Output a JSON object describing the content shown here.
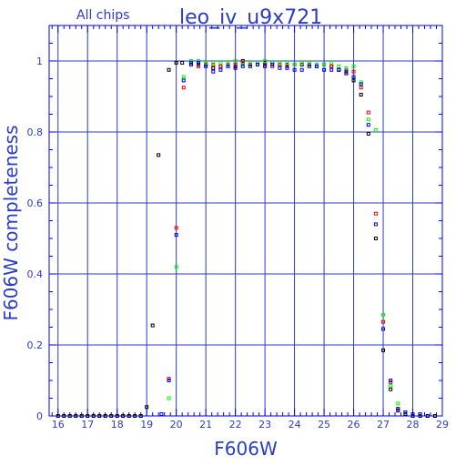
{
  "chart_data": {
    "type": "scatter",
    "title": "leo_iv_u9x721",
    "subtitle": "All chips",
    "xlabel": "F606W",
    "ylabel": "F606W completeness",
    "xlim": [
      15.7,
      29
    ],
    "ylim": [
      0,
      1.1
    ],
    "grid": true,
    "x_ticks": [
      16,
      17,
      18,
      19,
      20,
      21,
      22,
      23,
      24,
      25,
      26,
      27,
      28,
      29
    ],
    "y_ticks": [
      0,
      0.2,
      0.4,
      0.6,
      0.8,
      1
    ],
    "colors": {
      "axis": "#0000ff",
      "grid": "#2b3cc4",
      "text": "#2b3cc4",
      "series_black": "#000000",
      "series_red": "#ff0000",
      "series_green": "#00ff00",
      "series_blue": "#0000ff"
    },
    "series": [
      {
        "color": "#000000",
        "points": [
          [
            16.0,
            0
          ],
          [
            16.2,
            0
          ],
          [
            16.4,
            0
          ],
          [
            16.6,
            0
          ],
          [
            16.8,
            0
          ],
          [
            17.0,
            0
          ],
          [
            17.2,
            0
          ],
          [
            17.4,
            0
          ],
          [
            17.6,
            0
          ],
          [
            17.8,
            0
          ],
          [
            18.0,
            0
          ],
          [
            18.2,
            0
          ],
          [
            18.4,
            0
          ],
          [
            18.6,
            0
          ],
          [
            18.8,
            0
          ],
          [
            19.0,
            0.025
          ],
          [
            19.2,
            0.255
          ],
          [
            19.4,
            0.735
          ],
          [
            19.75,
            0.975
          ],
          [
            20.0,
            0.995
          ],
          [
            20.2,
            0.995
          ],
          [
            20.5,
            0.99
          ],
          [
            20.75,
            0.99
          ],
          [
            21.0,
            0.99
          ],
          [
            21.25,
            0.98
          ],
          [
            21.5,
            0.985
          ],
          [
            21.75,
            0.99
          ],
          [
            22.0,
            0.985
          ],
          [
            22.25,
            1.0
          ],
          [
            22.5,
            0.99
          ],
          [
            22.75,
            0.99
          ],
          [
            23.0,
            0.995
          ],
          [
            23.25,
            0.995
          ],
          [
            23.5,
            0.99
          ],
          [
            23.75,
            0.99
          ],
          [
            24.0,
            0.99
          ],
          [
            24.25,
            0.99
          ],
          [
            24.5,
            0.99
          ],
          [
            24.75,
            0.985
          ],
          [
            25.0,
            0.99
          ],
          [
            25.25,
            0.985
          ],
          [
            25.5,
            0.975
          ],
          [
            25.75,
            0.965
          ],
          [
            26.0,
            0.945
          ],
          [
            26.25,
            0.905
          ],
          [
            26.5,
            0.795
          ],
          [
            26.75,
            0.5
          ],
          [
            27.0,
            0.185
          ],
          [
            27.25,
            0.075
          ],
          [
            27.5,
            0.015
          ],
          [
            27.75,
            0.005
          ],
          [
            28.0,
            0
          ],
          [
            28.25,
            0
          ],
          [
            28.5,
            0
          ],
          [
            28.75,
            0
          ]
        ]
      },
      {
        "color": "#ff0000",
        "points": [
          [
            19.75,
            0.105
          ],
          [
            20.0,
            0.53
          ],
          [
            20.25,
            0.925
          ],
          [
            20.5,
            0.995
          ],
          [
            20.75,
            0.985
          ],
          [
            21.0,
            0.99
          ],
          [
            21.25,
            0.99
          ],
          [
            21.5,
            0.985
          ],
          [
            21.75,
            0.99
          ],
          [
            22.0,
            0.99
          ],
          [
            22.25,
            0.995
          ],
          [
            22.5,
            0.99
          ],
          [
            22.75,
            0.995
          ],
          [
            23.0,
            0.99
          ],
          [
            23.25,
            0.985
          ],
          [
            23.5,
            0.99
          ],
          [
            23.75,
            0.985
          ],
          [
            24.0,
            0.99
          ],
          [
            24.25,
            0.995
          ],
          [
            24.5,
            0.99
          ],
          [
            24.75,
            0.985
          ],
          [
            25.0,
            0.99
          ],
          [
            25.25,
            0.985
          ],
          [
            25.5,
            0.975
          ],
          [
            25.75,
            0.975
          ],
          [
            26.0,
            0.97
          ],
          [
            26.25,
            0.925
          ],
          [
            26.5,
            0.855
          ],
          [
            26.75,
            0.57
          ],
          [
            27.0,
            0.265
          ],
          [
            27.25,
            0.095
          ],
          [
            27.5,
            0.02
          ],
          [
            27.75,
            0.01
          ],
          [
            28.0,
            0.005
          ]
        ]
      },
      {
        "color": "#00ff00",
        "points": [
          [
            19.75,
            0.05
          ],
          [
            20.0,
            0.42
          ],
          [
            20.25,
            0.955
          ],
          [
            20.5,
            1.0
          ],
          [
            20.75,
            1.0
          ],
          [
            21.0,
            0.995
          ],
          [
            21.25,
            0.995
          ],
          [
            21.5,
            0.995
          ],
          [
            21.75,
            0.995
          ],
          [
            22.0,
            1.0
          ],
          [
            22.25,
            0.99
          ],
          [
            22.5,
            0.995
          ],
          [
            22.75,
            0.995
          ],
          [
            23.0,
            1.0
          ],
          [
            23.25,
            0.995
          ],
          [
            23.5,
            0.995
          ],
          [
            23.75,
            0.995
          ],
          [
            24.0,
            0.99
          ],
          [
            24.25,
            0.995
          ],
          [
            24.5,
            0.995
          ],
          [
            24.75,
            0.99
          ],
          [
            25.0,
            0.99
          ],
          [
            25.25,
            0.995
          ],
          [
            25.5,
            0.985
          ],
          [
            25.75,
            0.98
          ],
          [
            26.0,
            0.985
          ],
          [
            26.25,
            0.94
          ],
          [
            26.5,
            0.835
          ],
          [
            26.75,
            0.805
          ],
          [
            27.0,
            0.285
          ],
          [
            27.25,
            0.085
          ],
          [
            27.5,
            0.035
          ],
          [
            27.75,
            0.01
          ]
        ]
      },
      {
        "color": "#0000ff",
        "points": [
          [
            19.5,
            0.005
          ],
          [
            19.75,
            0.1
          ],
          [
            20.0,
            0.51
          ],
          [
            20.25,
            0.945
          ],
          [
            20.5,
            0.995
          ],
          [
            20.75,
            0.995
          ],
          [
            21.0,
            0.985
          ],
          [
            21.25,
            0.97
          ],
          [
            21.5,
            0.975
          ],
          [
            21.75,
            0.985
          ],
          [
            22.0,
            0.98
          ],
          [
            22.25,
            0.985
          ],
          [
            22.5,
            0.985
          ],
          [
            22.75,
            0.99
          ],
          [
            23.0,
            0.985
          ],
          [
            23.25,
            0.99
          ],
          [
            23.5,
            0.98
          ],
          [
            23.75,
            0.98
          ],
          [
            24.0,
            0.975
          ],
          [
            24.25,
            0.975
          ],
          [
            24.5,
            0.985
          ],
          [
            24.75,
            0.985
          ],
          [
            25.0,
            0.975
          ],
          [
            25.25,
            0.975
          ],
          [
            25.5,
            0.975
          ],
          [
            25.75,
            0.97
          ],
          [
            26.0,
            0.955
          ],
          [
            26.25,
            0.935
          ],
          [
            26.5,
            0.82
          ],
          [
            26.75,
            0.54
          ],
          [
            27.0,
            0.245
          ],
          [
            27.25,
            0.1
          ],
          [
            27.5,
            0.02
          ],
          [
            27.75,
            0.01
          ],
          [
            28.0,
            0.005
          ],
          [
            28.25,
            0.005
          ]
        ]
      }
    ]
  }
}
